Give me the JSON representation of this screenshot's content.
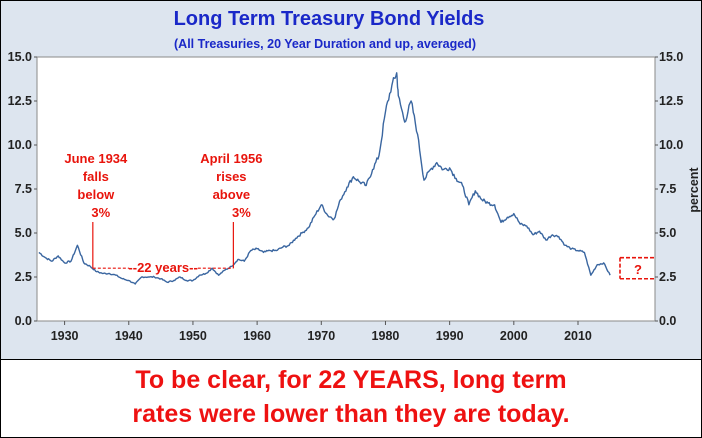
{
  "colors": {
    "panel_bg": "#dde5ef",
    "plot_bg": "#ffffff",
    "line": "#3a66a0",
    "title": "#1a28c8",
    "annotation": "#e8140c",
    "caption": "#ee1111"
  },
  "caption": {
    "line1": "To be clear, for 22 YEARS, long term",
    "line2": "rates were lower than they are today."
  },
  "chart_data": {
    "type": "line",
    "title": "Long Term Treasury Bond Yields",
    "subtitle": "(All Treasuries, 20 Year Duration and up, averaged)",
    "ylabel_right": "percent",
    "xlim": [
      1925.7,
      2022
    ],
    "ylim": [
      0,
      15
    ],
    "x_ticks": [
      1930,
      1940,
      1950,
      1960,
      1970,
      1980,
      1990,
      2000,
      2010
    ],
    "y_ticks": [
      "0.0",
      "2.5",
      "5.0",
      "7.5",
      "10.0",
      "12.5",
      "15.0"
    ],
    "grid": false,
    "series": [
      {
        "x": [
          1926,
          1927,
          1928,
          1929,
          1930,
          1931,
          1932,
          1933,
          1934,
          1935,
          1936,
          1937,
          1938,
          1939,
          1940,
          1941,
          1942,
          1943,
          1944,
          1945,
          1946,
          1947,
          1948,
          1949,
          1950,
          1951,
          1952,
          1953,
          1954,
          1955,
          1956,
          1957,
          1958,
          1959,
          1960,
          1961,
          1962,
          1963,
          1964,
          1965,
          1966,
          1967,
          1968,
          1969,
          1970,
          1971,
          1972,
          1973,
          1974,
          1975,
          1976,
          1977,
          1978,
          1979,
          1980,
          1981,
          1981.75,
          1982,
          1983,
          1984,
          1985,
          1986,
          1987,
          1988,
          1989,
          1990,
          1991,
          1992,
          1993,
          1994,
          1995,
          1996,
          1997,
          1998,
          1999,
          2000,
          2001,
          2002,
          2003,
          2004,
          2005,
          2006,
          2007,
          2008,
          2009,
          2010,
          2011,
          2012,
          2013,
          2014,
          2015
        ],
        "y": [
          3.9,
          3.6,
          3.4,
          3.7,
          3.3,
          3.4,
          4.3,
          3.3,
          3.1,
          2.8,
          2.7,
          2.7,
          2.6,
          2.4,
          2.3,
          2.1,
          2.5,
          2.5,
          2.5,
          2.4,
          2.2,
          2.3,
          2.5,
          2.3,
          2.3,
          2.6,
          2.7,
          3.0,
          2.6,
          2.9,
          3.1,
          3.5,
          3.4,
          4.0,
          4.1,
          3.9,
          4.0,
          4.0,
          4.2,
          4.3,
          4.7,
          5.0,
          5.3,
          6.0,
          6.6,
          6.0,
          5.8,
          6.9,
          7.6,
          8.2,
          7.9,
          7.7,
          8.6,
          9.4,
          11.9,
          13.4,
          14.1,
          12.8,
          11.3,
          12.5,
          10.6,
          8.0,
          8.6,
          9.0,
          8.6,
          8.7,
          8.1,
          7.7,
          6.6,
          7.4,
          6.9,
          6.7,
          6.6,
          5.6,
          5.9,
          6.1,
          5.5,
          5.4,
          4.9,
          5.1,
          4.6,
          4.9,
          4.8,
          4.3,
          4.1,
          4.0,
          3.9,
          2.6,
          3.2,
          3.3,
          2.6
        ]
      }
    ],
    "annotations": [
      {
        "lines": [
          "June 1934",
          "falls",
          "below",
          "3%"
        ],
        "x": 1934.4
      },
      {
        "lines": [
          "April 1956",
          "rises",
          "above",
          "3%"
        ],
        "x": 1956.3
      }
    ],
    "span_label": "22 years",
    "span_y": 3.0,
    "question_label": "?",
    "question_band": [
      2.4,
      3.6
    ]
  }
}
